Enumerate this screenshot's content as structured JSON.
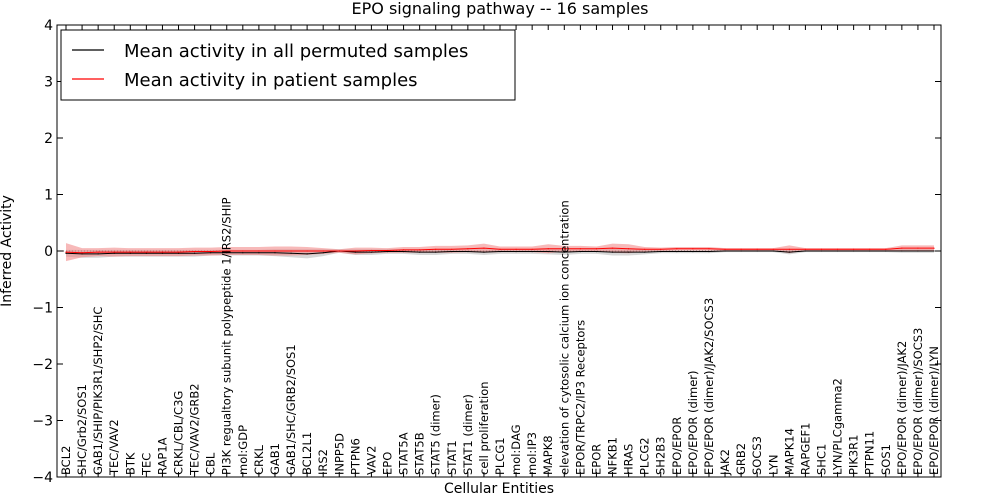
{
  "chart_data": {
    "type": "line",
    "title": "EPO signaling pathway -- 16 samples",
    "xlabel": "Cellular Entities",
    "ylabel": "Inferred Activity",
    "ylim": [
      -4,
      4
    ],
    "yticks": [
      "−4",
      "−3",
      "−2",
      "−1",
      "0",
      "1",
      "2",
      "3",
      "4"
    ],
    "grid": false,
    "legend_position": "top-left",
    "categories": [
      "BCL2",
      "SHC/Grb2/SOS1",
      "GAB1/SHIP/PIK3R1/SHP2/SHC",
      "TEC/VAV2",
      "BTK",
      "TEC",
      "RAP1A",
      "CRKL/CBL/C3G",
      "TEC/VAV2/GRB2",
      "CBL",
      "PI3K regualtory subunit polypeptide 1/IRS2/SHIP",
      "mol:GDP",
      "CRKL",
      "GAB1",
      "GAB1/SHC/GRB2/SOS1",
      "BCL2L1",
      "IRS2",
      "INPP5D",
      "PTPN6",
      "VAV2",
      "EPO",
      "STAT5A",
      "STAT5B",
      "STAT5 (dimer)",
      "STAT1",
      "STAT1 (dimer)",
      "cell proliferation",
      "PLCG1",
      "mol:DAG",
      "mol:IP3",
      "MAPK8",
      "elevation of cytosolic calcium ion concentration",
      "EPOR/TRPC2/IP3 Receptors",
      "EPOR",
      "NFKB1",
      "HRAS",
      "PLCG2",
      "SH2B3",
      "EPO/EPOR",
      "EPO/EPOR (dimer)",
      "EPO/EPOR (dimer)/JAK2/SOCS3",
      "JAK2",
      "GRB2",
      "SOCS3",
      "LYN",
      "MAPK14",
      "RAPGEF1",
      "SHC1",
      "LYN/PLCgamma2",
      "PIK3R1",
      "PTPN11",
      "SOS1",
      "EPO/EPOR (dimer)/JAK2",
      "EPO/EPOR (dimer)/SOCS3",
      "EPO/EPOR (dimer)/LYN"
    ],
    "series": [
      {
        "name": "Mean activity in all permuted samples",
        "color": "#000000",
        "band_color": "#b0b0b0",
        "values": [
          -0.04,
          -0.05,
          -0.05,
          -0.04,
          -0.04,
          -0.04,
          -0.04,
          -0.04,
          -0.04,
          -0.03,
          -0.03,
          -0.03,
          -0.03,
          -0.03,
          -0.04,
          -0.05,
          -0.03,
          0.0,
          -0.02,
          -0.02,
          -0.01,
          -0.01,
          -0.02,
          -0.02,
          -0.01,
          -0.01,
          -0.02,
          -0.01,
          -0.01,
          -0.01,
          -0.01,
          -0.02,
          -0.01,
          -0.01,
          -0.02,
          -0.02,
          -0.02,
          -0.01,
          -0.01,
          -0.01,
          -0.01,
          0.0,
          0.0,
          0.0,
          0.0,
          -0.02,
          0.0,
          0.0,
          0.0,
          0.0,
          0.0,
          0.0,
          0.0,
          0.0,
          0.0
        ],
        "band": [
          0.06,
          0.07,
          0.07,
          0.06,
          0.06,
          0.06,
          0.06,
          0.06,
          0.06,
          0.05,
          0.05,
          0.05,
          0.05,
          0.06,
          0.07,
          0.08,
          0.06,
          0.03,
          0.05,
          0.05,
          0.04,
          0.04,
          0.05,
          0.05,
          0.04,
          0.04,
          0.05,
          0.04,
          0.04,
          0.04,
          0.05,
          0.05,
          0.04,
          0.04,
          0.06,
          0.06,
          0.04,
          0.03,
          0.03,
          0.03,
          0.03,
          0.02,
          0.02,
          0.02,
          0.02,
          0.04,
          0.02,
          0.02,
          0.02,
          0.02,
          0.02,
          0.02,
          0.03,
          0.03,
          0.03
        ]
      },
      {
        "name": "Mean activity in patient samples",
        "color": "#ff0000",
        "band_color": "#f08080",
        "values": [
          -0.02,
          -0.03,
          -0.02,
          -0.02,
          -0.02,
          -0.02,
          -0.02,
          -0.02,
          -0.01,
          -0.01,
          0.0,
          0.0,
          0.0,
          0.0,
          0.0,
          0.0,
          0.0,
          0.0,
          0.0,
          0.01,
          0.01,
          0.02,
          0.02,
          0.03,
          0.03,
          0.04,
          0.05,
          0.03,
          0.03,
          0.03,
          0.04,
          0.04,
          0.04,
          0.04,
          0.05,
          0.04,
          0.03,
          0.03,
          0.04,
          0.04,
          0.04,
          0.03,
          0.03,
          0.03,
          0.03,
          0.03,
          0.03,
          0.03,
          0.03,
          0.03,
          0.03,
          0.03,
          0.05,
          0.05,
          0.05
        ],
        "band": [
          0.16,
          0.08,
          0.07,
          0.08,
          0.07,
          0.07,
          0.07,
          0.07,
          0.07,
          0.07,
          0.07,
          0.07,
          0.07,
          0.08,
          0.08,
          0.07,
          0.05,
          0.03,
          0.06,
          0.05,
          0.04,
          0.05,
          0.05,
          0.06,
          0.06,
          0.06,
          0.08,
          0.05,
          0.05,
          0.05,
          0.08,
          0.05,
          0.05,
          0.04,
          0.08,
          0.08,
          0.04,
          0.03,
          0.03,
          0.03,
          0.03,
          0.02,
          0.02,
          0.02,
          0.02,
          0.07,
          0.02,
          0.02,
          0.02,
          0.02,
          0.02,
          0.02,
          0.05,
          0.05,
          0.05
        ]
      }
    ]
  }
}
